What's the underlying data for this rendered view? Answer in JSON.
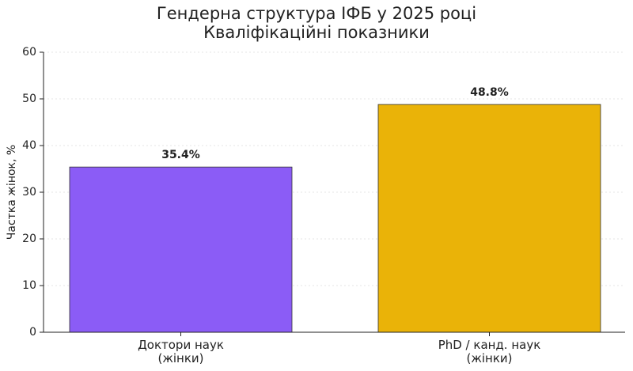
{
  "chart_data": {
    "type": "bar",
    "title": "Гендерна структура ІФБ у 2025 році\nКваліфікаційні показники",
    "y_label": "Частка жінок, %",
    "categories": [
      "Доктори наук\n(жінки)",
      "PhD / канд. наук\n(жінки)"
    ],
    "values": [
      35.4,
      48.8
    ],
    "value_labels": [
      "35.4%",
      "48.8%"
    ],
    "colors": [
      "#8b5cf6",
      "#eab308"
    ],
    "ylim": [
      0,
      60
    ],
    "yticks": [
      0,
      10,
      20,
      30,
      40,
      50,
      60
    ],
    "grid": true
  }
}
